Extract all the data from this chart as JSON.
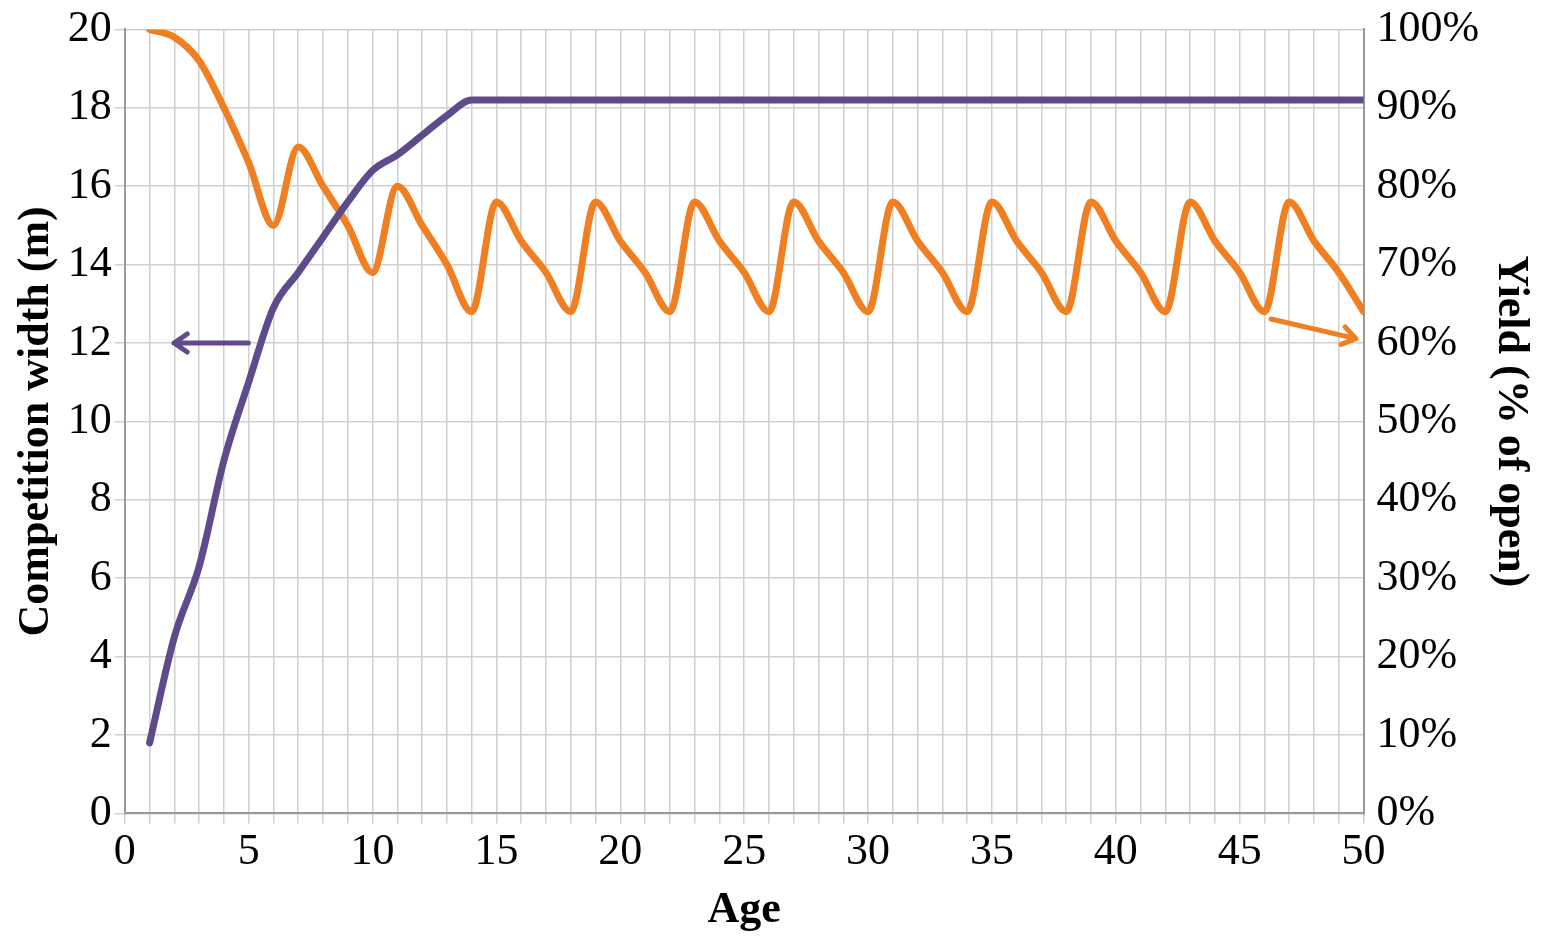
{
  "chart_data": {
    "type": "line",
    "xlabel": "Age",
    "ylabel": "Competition width (m)",
    "y2label": "Yield (% of open)",
    "x": [
      1,
      2,
      3,
      4,
      5,
      6,
      7,
      8,
      9,
      10,
      11,
      12,
      13,
      14,
      15,
      16,
      17,
      18,
      19,
      20,
      21,
      22,
      23,
      24,
      25,
      26,
      27,
      28,
      29,
      30,
      31,
      32,
      33,
      34,
      35,
      36,
      37,
      38,
      39,
      40,
      41,
      42,
      43,
      44,
      45,
      46,
      47,
      48,
      49,
      50
    ],
    "series": [
      {
        "color": "#5f4b8b",
        "values": [
          1.8,
          4.5,
          6.3,
          9,
          11,
          12.9,
          13.8,
          14.7,
          15.6,
          16.4,
          16.8,
          17.3,
          17.8,
          18.2,
          18.2,
          18.2,
          18.2,
          18.2,
          18.2,
          18.2,
          18.2,
          18.2,
          18.2,
          18.2,
          18.2,
          18.2,
          18.2,
          18.2,
          18.2,
          18.2,
          18.2,
          18.2,
          18.2,
          18.2,
          18.2,
          18.2,
          18.2,
          18.2,
          18.2,
          18.2,
          18.2,
          18.2,
          18.2,
          18.2,
          18.2,
          18.2,
          18.2,
          18.2,
          18.2,
          18.2
        ]
      },
      {
        "color": "#f07f22",
        "axis": "y2",
        "values": [
          100,
          99,
          96,
          90,
          83,
          75,
          85,
          80,
          75,
          69,
          80,
          75,
          70,
          64,
          78,
          73,
          69,
          64,
          78,
          73,
          69,
          64,
          78,
          73,
          69,
          64,
          78,
          73,
          69,
          64,
          78,
          73,
          69,
          64,
          78,
          73,
          69,
          64,
          78,
          73,
          69,
          64,
          78,
          73,
          69,
          64,
          78,
          73,
          69,
          64
        ]
      }
    ],
    "xlim": [
      0,
      50
    ],
    "xticks": [
      0,
      {
        "value": 1,
        "label": null
      },
      {
        "value": 2,
        "label": null
      },
      {
        "value": 3,
        "label": null
      },
      {
        "value": 4,
        "label": null
      },
      5,
      {
        "value": 6,
        "label": null
      },
      {
        "value": 7,
        "label": null
      },
      {
        "value": 8,
        "label": null
      },
      {
        "value": 9,
        "label": null
      },
      10,
      {
        "value": 11,
        "label": null
      },
      {
        "value": 12,
        "label": null
      },
      {
        "value": 13,
        "label": null
      },
      {
        "value": 14,
        "label": null
      },
      15,
      {
        "value": 16,
        "label": null
      },
      {
        "value": 17,
        "label": null
      },
      {
        "value": 18,
        "label": null
      },
      {
        "value": 19,
        "label": null
      },
      20,
      {
        "value": 21,
        "label": null
      },
      {
        "value": 22,
        "label": null
      },
      {
        "value": 23,
        "label": null
      },
      {
        "value": 24,
        "label": null
      },
      25,
      {
        "value": 26,
        "label": null
      },
      {
        "value": 27,
        "label": null
      },
      {
        "value": 28,
        "label": null
      },
      {
        "value": 29,
        "label": null
      },
      30,
      {
        "value": 31,
        "label": null
      },
      {
        "value": 32,
        "label": null
      },
      {
        "value": 33,
        "label": null
      },
      {
        "value": 34,
        "label": null
      },
      35,
      {
        "value": 36,
        "label": null
      },
      {
        "value": 37,
        "label": null
      },
      {
        "value": 38,
        "label": null
      },
      {
        "value": 39,
        "label": null
      },
      40,
      {
        "value": 41,
        "label": null
      },
      {
        "value": 42,
        "label": null
      },
      {
        "value": 43,
        "label": null
      },
      {
        "value": 44,
        "label": null
      },
      45,
      {
        "value": 46,
        "label": null
      },
      {
        "value": 47,
        "label": null
      },
      {
        "value": 48,
        "label": null
      },
      {
        "value": 49,
        "label": null
      },
      50
    ],
    "ylim": [
      0,
      20
    ],
    "yticks": [
      0,
      2,
      4,
      6,
      8,
      10,
      12,
      14,
      16,
      18,
      20
    ],
    "y2lim": [
      0,
      100
    ],
    "y2ticks": [
      {
        "value": 0,
        "label": "0%"
      },
      {
        "value": 10,
        "label": "10%"
      },
      {
        "value": 20,
        "label": "20%"
      },
      {
        "value": 30,
        "label": "30%"
      },
      {
        "value": 40,
        "label": "40%"
      },
      {
        "value": 50,
        "label": "50%"
      },
      {
        "value": 60,
        "label": "60%"
      },
      {
        "value": 70,
        "label": "70%"
      },
      {
        "value": 80,
        "label": "80%"
      },
      {
        "value": 90,
        "label": "90%"
      },
      {
        "value": 100,
        "label": "100%"
      }
    ],
    "grid": true,
    "legend": false,
    "marker": "none",
    "line_style": "solid"
  }
}
